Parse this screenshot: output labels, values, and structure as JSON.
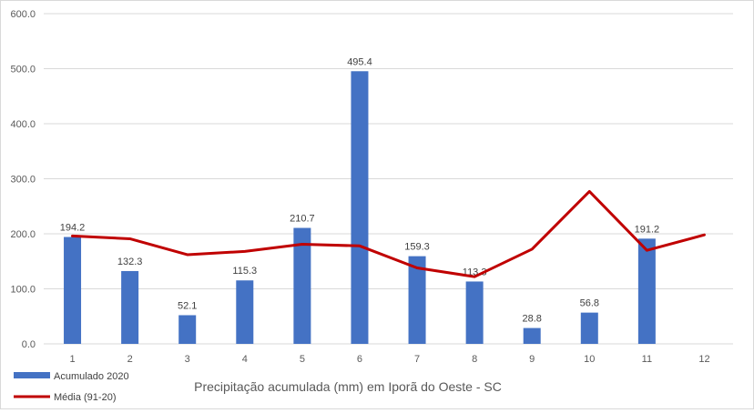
{
  "chart_data": {
    "type": "bar",
    "title": "",
    "xlabel": "Precipitação acumulada (mm) em Iporã do Oeste - SC",
    "ylabel": "",
    "ylim": [
      0,
      600
    ],
    "yticks": [
      0,
      100,
      200,
      300,
      400,
      500,
      600
    ],
    "ytick_labels": [
      "0.0",
      "100.0",
      "200.0",
      "300.0",
      "400.0",
      "500.0",
      "600.0"
    ],
    "categories": [
      "1",
      "2",
      "3",
      "4",
      "5",
      "6",
      "7",
      "8",
      "9",
      "10",
      "11",
      "12"
    ],
    "grid": true,
    "legend_position": "bottom-left",
    "series": [
      {
        "name": "Acumulado 2020",
        "type": "bar",
        "color": "#4472C4",
        "values": [
          194.2,
          132.3,
          52.1,
          115.3,
          210.7,
          495.4,
          159.3,
          113.3,
          28.8,
          56.8,
          191.2,
          null
        ],
        "data_labels": [
          "194.2",
          "132.3",
          "52.1",
          "115.3",
          "210.7",
          "495.4",
          "159.3",
          "113.3",
          "28.8",
          "56.8",
          "191.2",
          ""
        ]
      },
      {
        "name": "Média (91-20)",
        "type": "line",
        "color": "#C00000",
        "values": [
          196,
          191,
          162,
          168,
          181,
          178,
          138,
          122,
          172,
          277,
          170,
          198
        ]
      }
    ]
  }
}
